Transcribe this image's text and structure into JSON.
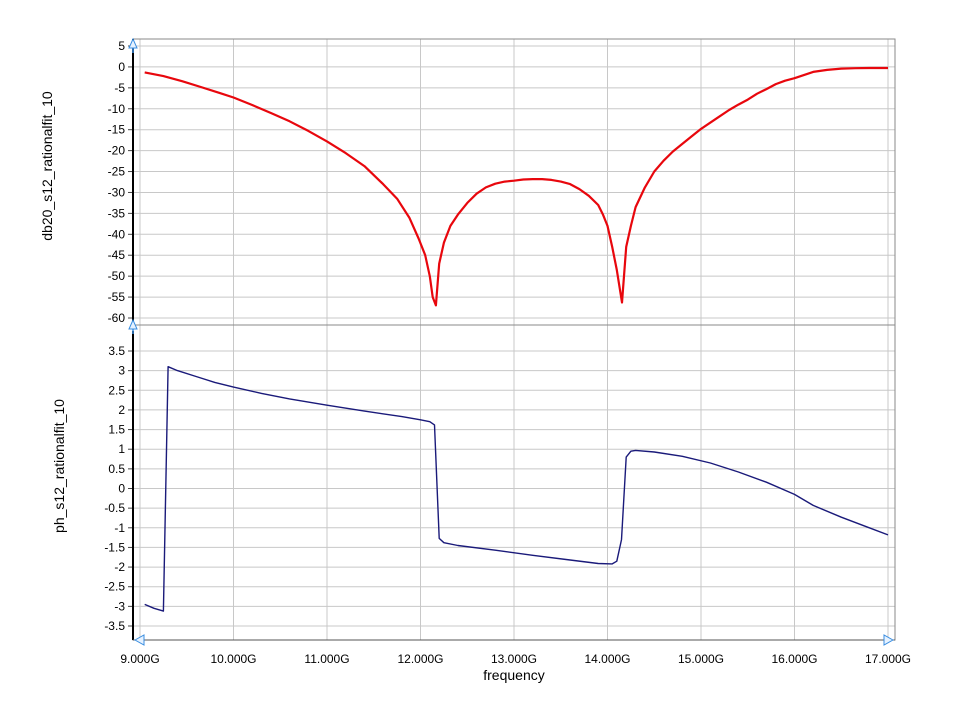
{
  "chart_data": [
    {
      "type": "line",
      "ylabel": "db20_s12_rationalfit_10",
      "xlabel": "frequency",
      "xlim": [
        9.0,
        17.0
      ],
      "ylim": [
        -60,
        5
      ],
      "x_ticks": [
        9,
        10,
        11,
        12,
        13,
        14,
        15,
        16,
        17
      ],
      "x_tick_labels": [
        "9.000G",
        "10.000G",
        "11.000G",
        "12.000G",
        "13.000G",
        "14.000G",
        "15.000G",
        "16.000G",
        "17.000G"
      ],
      "y_ticks": [
        5,
        0,
        -5,
        -10,
        -15,
        -20,
        -25,
        -30,
        -35,
        -40,
        -45,
        -50,
        -55,
        -60
      ],
      "y_tick_labels": [
        "5",
        "0",
        "-5",
        "-10",
        "-15",
        "-20",
        "-25",
        "-30",
        "-35",
        "-40",
        "-45",
        "-50",
        "-55",
        "-60"
      ],
      "grid": true,
      "series": [
        {
          "color": "#e8070d",
          "x": [
            9.05,
            9.25,
            9.45,
            9.65,
            9.85,
            10.0,
            10.2,
            10.4,
            10.6,
            10.8,
            11.0,
            11.2,
            11.4,
            11.6,
            11.75,
            11.88,
            11.98,
            12.05,
            12.1,
            12.13,
            12.165,
            12.2,
            12.25,
            12.32,
            12.4,
            12.5,
            12.6,
            12.7,
            12.8,
            12.9,
            13.0,
            13.1,
            13.2,
            13.3,
            13.4,
            13.5,
            13.6,
            13.7,
            13.8,
            13.9,
            13.95,
            14.0,
            14.05,
            14.1,
            14.155,
            14.2,
            14.25,
            14.3,
            14.4,
            14.5,
            14.6,
            14.7,
            14.8,
            14.9,
            15.0,
            15.1,
            15.2,
            15.3,
            15.4,
            15.5,
            15.6,
            15.7,
            15.8,
            15.9,
            16.0,
            16.2,
            16.35,
            16.5,
            16.65,
            16.8,
            17.0
          ],
          "values": [
            -1.3,
            -2.2,
            -3.4,
            -4.8,
            -6.2,
            -7.3,
            -9.1,
            -11.0,
            -13.0,
            -15.3,
            -17.8,
            -20.6,
            -23.7,
            -28.0,
            -31.5,
            -36.0,
            -41.0,
            -45.0,
            -50.0,
            -55.0,
            -57.0,
            -47.0,
            -42.0,
            -38.0,
            -35.3,
            -32.5,
            -30.3,
            -28.8,
            -27.9,
            -27.4,
            -27.2,
            -26.9,
            -26.8,
            -26.8,
            -27.0,
            -27.4,
            -28.0,
            -29.2,
            -30.8,
            -33.0,
            -35.2,
            -38.0,
            -43.0,
            -48.5,
            -56.3,
            -43.0,
            -38.0,
            -33.5,
            -28.8,
            -25.0,
            -22.4,
            -20.2,
            -18.4,
            -16.6,
            -14.8,
            -13.3,
            -11.8,
            -10.3,
            -9.0,
            -7.8,
            -6.4,
            -5.3,
            -4.1,
            -3.3,
            -2.7,
            -1.2,
            -0.7,
            -0.4,
            -0.3,
            -0.25,
            -0.25
          ]
        }
      ]
    },
    {
      "type": "line",
      "ylabel": "ph_s12_rationalfit_10",
      "xlim": [
        9.0,
        17.0
      ],
      "ylim": [
        -3.8,
        3.8
      ],
      "y_ticks": [
        3.5,
        3,
        2.5,
        2,
        1.5,
        1,
        0.5,
        0,
        -0.5,
        -1,
        -1.5,
        -2,
        -2.5,
        -3,
        -3.5
      ],
      "y_tick_labels": [
        "3.5",
        "3",
        "2.5",
        "2",
        "1.5",
        "1",
        "0.5",
        "0",
        "-0.5",
        "-1",
        "-1.5",
        "-2",
        "-2.5",
        "-3",
        "-3.5"
      ],
      "grid": true,
      "series": [
        {
          "color": "#1a1a7a",
          "x": [
            9.05,
            9.15,
            9.25,
            9.3,
            9.4,
            9.6,
            9.8,
            10.0,
            10.3,
            10.6,
            11.0,
            11.4,
            11.8,
            12.0,
            12.1,
            12.15,
            12.2,
            12.25,
            12.4,
            12.8,
            13.2,
            13.6,
            13.9,
            14.05,
            14.1,
            14.15,
            14.2,
            14.25,
            14.3,
            14.5,
            14.8,
            15.1,
            15.4,
            15.7,
            16.0,
            16.2,
            16.5,
            16.8,
            17.0
          ],
          "values": [
            -2.95,
            -3.05,
            -3.12,
            3.1,
            3.0,
            2.85,
            2.7,
            2.58,
            2.42,
            2.28,
            2.12,
            1.97,
            1.83,
            1.75,
            1.7,
            1.62,
            -1.27,
            -1.38,
            -1.45,
            -1.57,
            -1.7,
            -1.82,
            -1.91,
            -1.92,
            -1.85,
            -1.3,
            0.8,
            0.95,
            0.97,
            0.93,
            0.82,
            0.65,
            0.42,
            0.16,
            -0.15,
            -0.43,
            -0.73,
            -1.0,
            -1.18
          ]
        }
      ]
    }
  ]
}
